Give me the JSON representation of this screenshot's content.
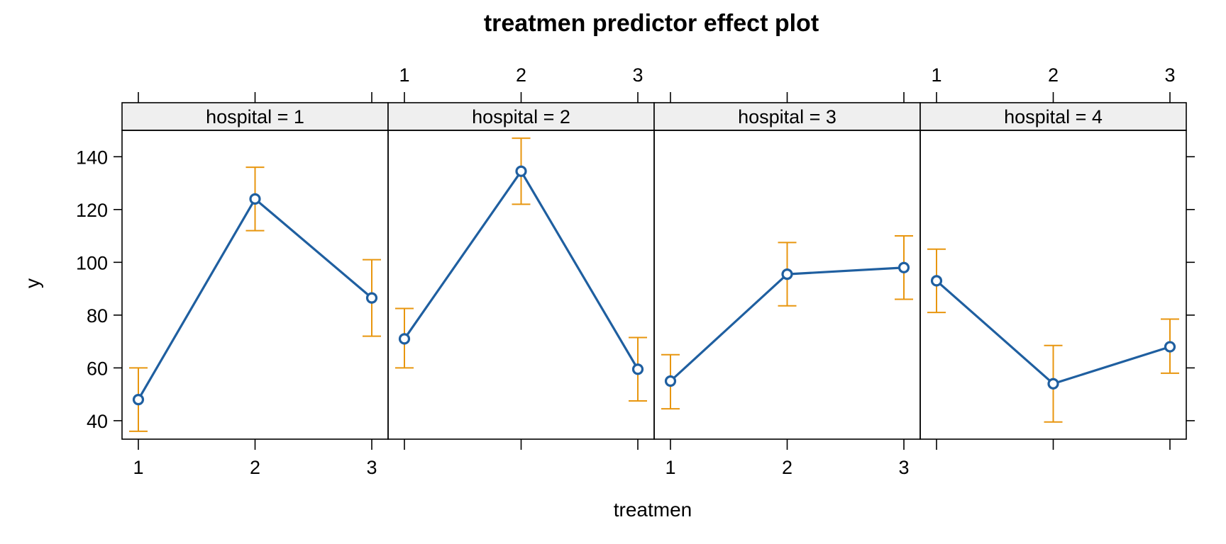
{
  "chart_data": {
    "type": "line",
    "title": "treatmen predictor effect plot",
    "xlabel": "treatmen",
    "ylabel": "y",
    "categories": [
      "1",
      "2",
      "3"
    ],
    "ylim": [
      33,
      150
    ],
    "yticks": [
      40,
      60,
      80,
      100,
      120,
      140
    ],
    "grid": false,
    "colors": {
      "line": "#1f5fa0",
      "errorbar": "#e8960f",
      "strip": "#efefef",
      "frame": "#000000"
    },
    "panels": [
      {
        "label": "hospital = 1",
        "fit": [
          48,
          124,
          86.5
        ],
        "lower": [
          36,
          112,
          72
        ],
        "upper": [
          60,
          136,
          101
        ]
      },
      {
        "label": "hospital = 2",
        "fit": [
          71,
          134.5,
          59.5
        ],
        "lower": [
          60,
          122,
          47.5
        ],
        "upper": [
          82.5,
          147,
          71.5
        ]
      },
      {
        "label": "hospital = 3",
        "fit": [
          55,
          95.5,
          98
        ],
        "lower": [
          44.5,
          83.5,
          86
        ],
        "upper": [
          65,
          107.5,
          110
        ]
      },
      {
        "label": "hospital = 4",
        "fit": [
          93,
          54,
          68
        ],
        "lower": [
          81,
          39.5,
          58
        ],
        "upper": [
          105,
          68.5,
          78.5
        ]
      }
    ]
  }
}
